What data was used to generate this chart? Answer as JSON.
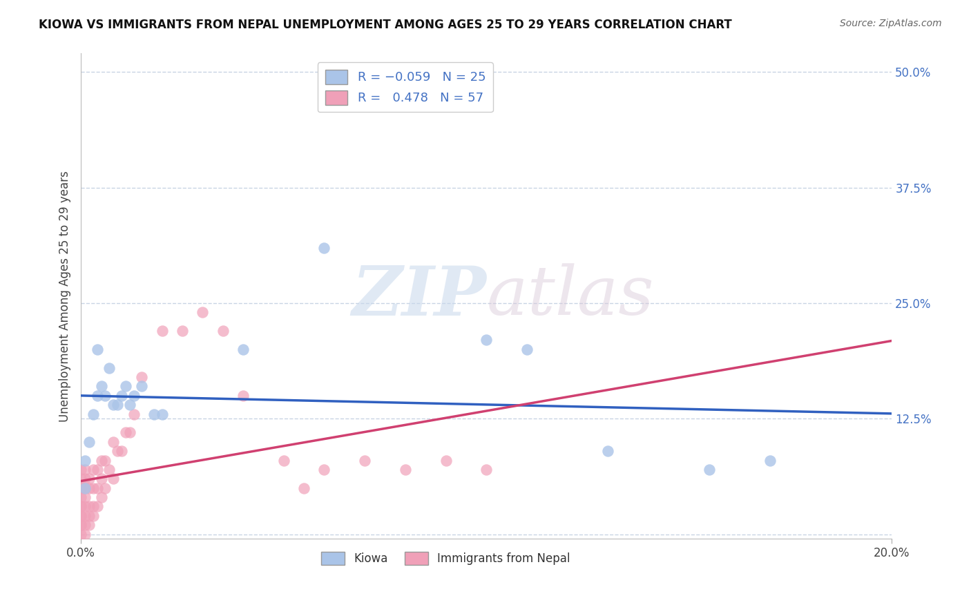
{
  "title": "KIOWA VS IMMIGRANTS FROM NEPAL UNEMPLOYMENT AMONG AGES 25 TO 29 YEARS CORRELATION CHART",
  "source": "Source: ZipAtlas.com",
  "ylabel": "Unemployment Among Ages 25 to 29 years",
  "xlim": [
    0.0,
    0.2
  ],
  "ylim": [
    -0.005,
    0.52
  ],
  "ytick_values": [
    0.0,
    0.125,
    0.25,
    0.375,
    0.5
  ],
  "ytick_labels": [
    "",
    "12.5%",
    "25.0%",
    "37.5%",
    "50.0%"
  ],
  "kiowa_color": "#aac4e8",
  "nepal_color": "#f0a0b8",
  "kiowa_line_color": "#3060c0",
  "nepal_line_color": "#d04070",
  "nepal_dash_color": "#e090a8",
  "R_kiowa": -0.059,
  "N_kiowa": 25,
  "R_nepal": 0.478,
  "N_nepal": 57,
  "legend_label_kiowa": "Kiowa",
  "legend_label_nepal": "Immigrants from Nepal",
  "watermark_zip": "ZIP",
  "watermark_atlas": "atlas",
  "background_color": "#ffffff",
  "grid_color": "#c8d4e4",
  "kiowa_x": [
    0.001,
    0.001,
    0.002,
    0.003,
    0.004,
    0.004,
    0.005,
    0.006,
    0.007,
    0.008,
    0.009,
    0.01,
    0.011,
    0.012,
    0.013,
    0.015,
    0.018,
    0.02,
    0.04,
    0.06,
    0.1,
    0.11,
    0.13,
    0.155,
    0.17
  ],
  "kiowa_y": [
    0.05,
    0.08,
    0.1,
    0.13,
    0.15,
    0.2,
    0.16,
    0.15,
    0.18,
    0.14,
    0.14,
    0.15,
    0.16,
    0.14,
    0.15,
    0.16,
    0.13,
    0.13,
    0.2,
    0.31,
    0.21,
    0.2,
    0.09,
    0.07,
    0.08
  ],
  "nepal_x": [
    0.0,
    0.0,
    0.0,
    0.0,
    0.0,
    0.0,
    0.0,
    0.0,
    0.0,
    0.0,
    0.0,
    0.001,
    0.001,
    0.001,
    0.001,
    0.001,
    0.001,
    0.001,
    0.001,
    0.002,
    0.002,
    0.002,
    0.002,
    0.002,
    0.003,
    0.003,
    0.003,
    0.003,
    0.004,
    0.004,
    0.004,
    0.005,
    0.005,
    0.005,
    0.006,
    0.006,
    0.007,
    0.008,
    0.008,
    0.009,
    0.01,
    0.011,
    0.012,
    0.013,
    0.015,
    0.02,
    0.025,
    0.03,
    0.035,
    0.04,
    0.05,
    0.055,
    0.06,
    0.07,
    0.08,
    0.09,
    0.1
  ],
  "nepal_y": [
    0.0,
    0.01,
    0.01,
    0.02,
    0.02,
    0.03,
    0.03,
    0.04,
    0.05,
    0.06,
    0.07,
    0.0,
    0.01,
    0.02,
    0.03,
    0.04,
    0.05,
    0.06,
    0.07,
    0.01,
    0.02,
    0.03,
    0.05,
    0.06,
    0.02,
    0.03,
    0.05,
    0.07,
    0.03,
    0.05,
    0.07,
    0.04,
    0.06,
    0.08,
    0.05,
    0.08,
    0.07,
    0.06,
    0.1,
    0.09,
    0.09,
    0.11,
    0.11,
    0.13,
    0.17,
    0.22,
    0.22,
    0.24,
    0.22,
    0.15,
    0.08,
    0.05,
    0.07,
    0.08,
    0.07,
    0.08,
    0.07
  ]
}
